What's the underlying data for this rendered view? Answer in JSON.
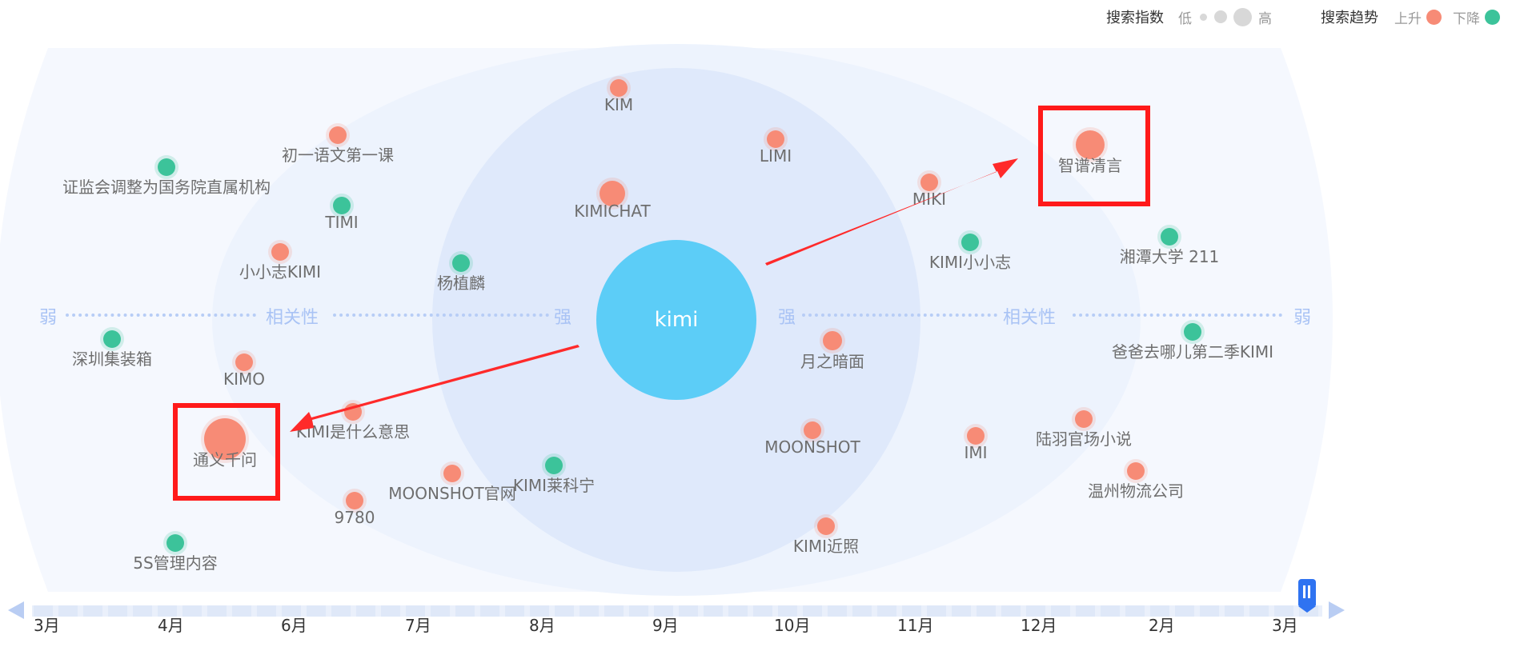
{
  "legend": {
    "index_label": "搜索指数",
    "low": "低",
    "high": "高",
    "trend_label": "搜索趋势",
    "up": "上升",
    "down": "下降"
  },
  "colors": {
    "up": "#f78b76",
    "down": "#3cc39a",
    "center": "#5ccdf7",
    "highlight": "#ff1a1a",
    "axis": "#a9c3f5"
  },
  "axis": {
    "weak": "弱",
    "strong": "强",
    "relevance": "相关性"
  },
  "center": {
    "label": "kimi"
  },
  "nodes": [
    {
      "label": "KIM",
      "trend": "up"
    },
    {
      "label": "初一语文第一课",
      "trend": "up"
    },
    {
      "label": "LIMI",
      "trend": "up"
    },
    {
      "label": "证监会调整为国务院直属机构",
      "trend": "down"
    },
    {
      "label": "KIMICHAT",
      "trend": "up"
    },
    {
      "label": "智谱清言",
      "trend": "up"
    },
    {
      "label": "TIMI",
      "trend": "down"
    },
    {
      "label": "MIKI",
      "trend": "up"
    },
    {
      "label": "小小志KIMI",
      "trend": "up"
    },
    {
      "label": "杨植麟",
      "trend": "down"
    },
    {
      "label": "KIMI小小志",
      "trend": "down"
    },
    {
      "label": "湘潭大学 211",
      "trend": "down"
    },
    {
      "label": "深圳集装箱",
      "trend": "down"
    },
    {
      "label": "月之暗面",
      "trend": "up"
    },
    {
      "label": "爸爸去哪儿第二季KIMI",
      "trend": "down"
    },
    {
      "label": "KIMO",
      "trend": "up"
    },
    {
      "label": "KIMI是什么意思",
      "trend": "up"
    },
    {
      "label": "通义千问",
      "trend": "up"
    },
    {
      "label": "MOONSHOT",
      "trend": "up"
    },
    {
      "label": "IMI",
      "trend": "up"
    },
    {
      "label": "陆羽官场小说",
      "trend": "up"
    },
    {
      "label": "MOONSHOT官网",
      "trend": "up"
    },
    {
      "label": "KIMI莱科宁",
      "trend": "down"
    },
    {
      "label": "温州物流公司",
      "trend": "up"
    },
    {
      "label": "9780",
      "trend": "up"
    },
    {
      "label": "KIMI近照",
      "trend": "up"
    },
    {
      "label": "5S管理内容",
      "trend": "down"
    }
  ],
  "highlights": [
    {
      "target": "智谱清言"
    },
    {
      "target": "通义千问"
    }
  ],
  "timeline": {
    "months": [
      "3月",
      "4月",
      "6月",
      "7月",
      "8月",
      "9月",
      "10月",
      "11月",
      "12月",
      "2月",
      "3月"
    ],
    "selected": "3月"
  }
}
